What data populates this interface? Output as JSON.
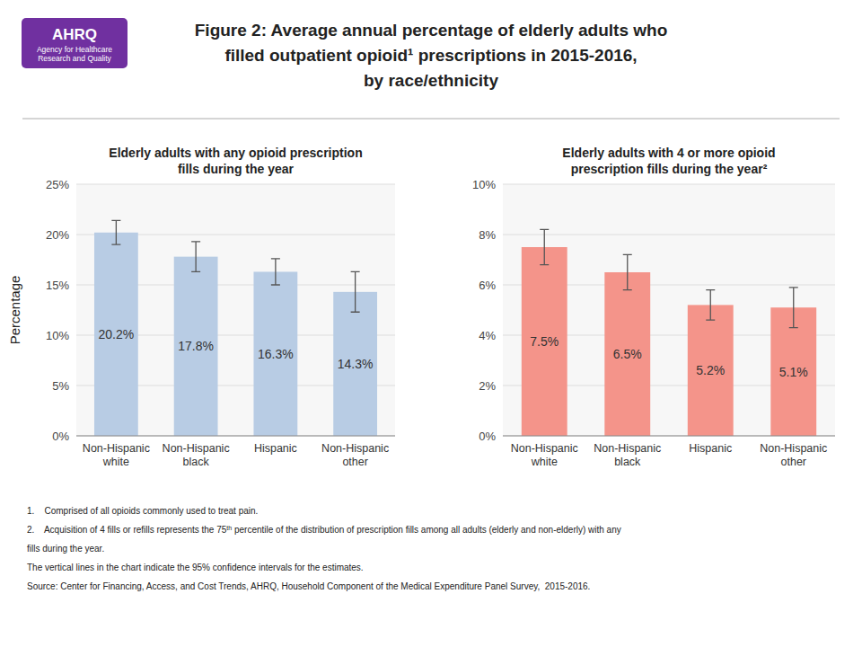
{
  "title": [
    "Figure 2: Average annual percentage of elderly adults who",
    "filled outpatient opioid¹ prescriptions in 2015-2016,",
    "by race/ethnicity"
  ],
  "ylabel": "Percentage",
  "logo": [
    "AHRQ",
    "Agency for Healthcare\nResearch and Quality"
  ],
  "footnotes": [
    [
      "1.    Comprised of all opioids commonly used to treat pain."
    ],
    [
      "2.    Acquisition of 4 fills or refills represents the 75",
      "th",
      " percentile of the distribution of prescription fills among all adults (elderly and non-elderly) with any"
    ],
    [
      "fills during the year."
    ],
    [
      "The vertical lines in the chart indicate the 95% confidence intervals for the estimates."
    ],
    [
      "Source: Center for Financing, Access, and Cost Trends, AHRQ, Household Component of the Medical Expenditure Panel Survey,  2015-2016."
    ]
  ],
  "chart_data": [
    {
      "type": "bar",
      "title": "Elderly adults with any opioid prescription\nfills during the year",
      "categories": [
        "Non-Hispanic\nwhite",
        "Non-Hispanic\nblack",
        "Hispanic",
        "Non-Hispanic\nother"
      ],
      "values": [
        20.2,
        17.8,
        16.3,
        14.3
      ],
      "errors": [
        1.2,
        1.5,
        1.3,
        2.0
      ],
      "value_labels": [
        "20.2%",
        "17.8%",
        "16.3%",
        "14.3%"
      ],
      "data_labels": true,
      "color": "#b8cce4",
      "ylim": [
        0,
        25
      ],
      "yticks": [
        {
          "value": 0,
          "label": "0%"
        },
        {
          "value": 5,
          "label": "5%"
        },
        {
          "value": 10,
          "label": "10%"
        },
        {
          "value": 15,
          "label": "15%"
        },
        {
          "value": 20,
          "label": "20%"
        },
        {
          "value": 25,
          "label": "25%"
        }
      ],
      "grid": true
    },
    {
      "type": "bar",
      "title": "Elderly adults with 4 or more opioid\nprescription fills during the year²",
      "categories": [
        "Non-Hispanic\nwhite",
        "Non-Hispanic\nblack",
        "Hispanic",
        "Non-Hispanic\nother"
      ],
      "values": [
        7.5,
        6.5,
        5.2,
        5.1
      ],
      "errors": [
        0.7,
        0.7,
        0.6,
        0.8
      ],
      "value_labels": [
        "7.5%",
        "6.5%",
        "5.2%",
        "5.1%"
      ],
      "data_labels": true,
      "color": "#f4948a",
      "ylim": [
        0,
        10
      ],
      "yticks": [
        {
          "value": 0,
          "label": "0%"
        },
        {
          "value": 2,
          "label": "2%"
        },
        {
          "value": 4,
          "label": "4%"
        },
        {
          "value": 6,
          "label": "6%"
        },
        {
          "value": 8,
          "label": "8%"
        },
        {
          "value": 10,
          "label": "10%"
        }
      ],
      "grid": true
    }
  ]
}
